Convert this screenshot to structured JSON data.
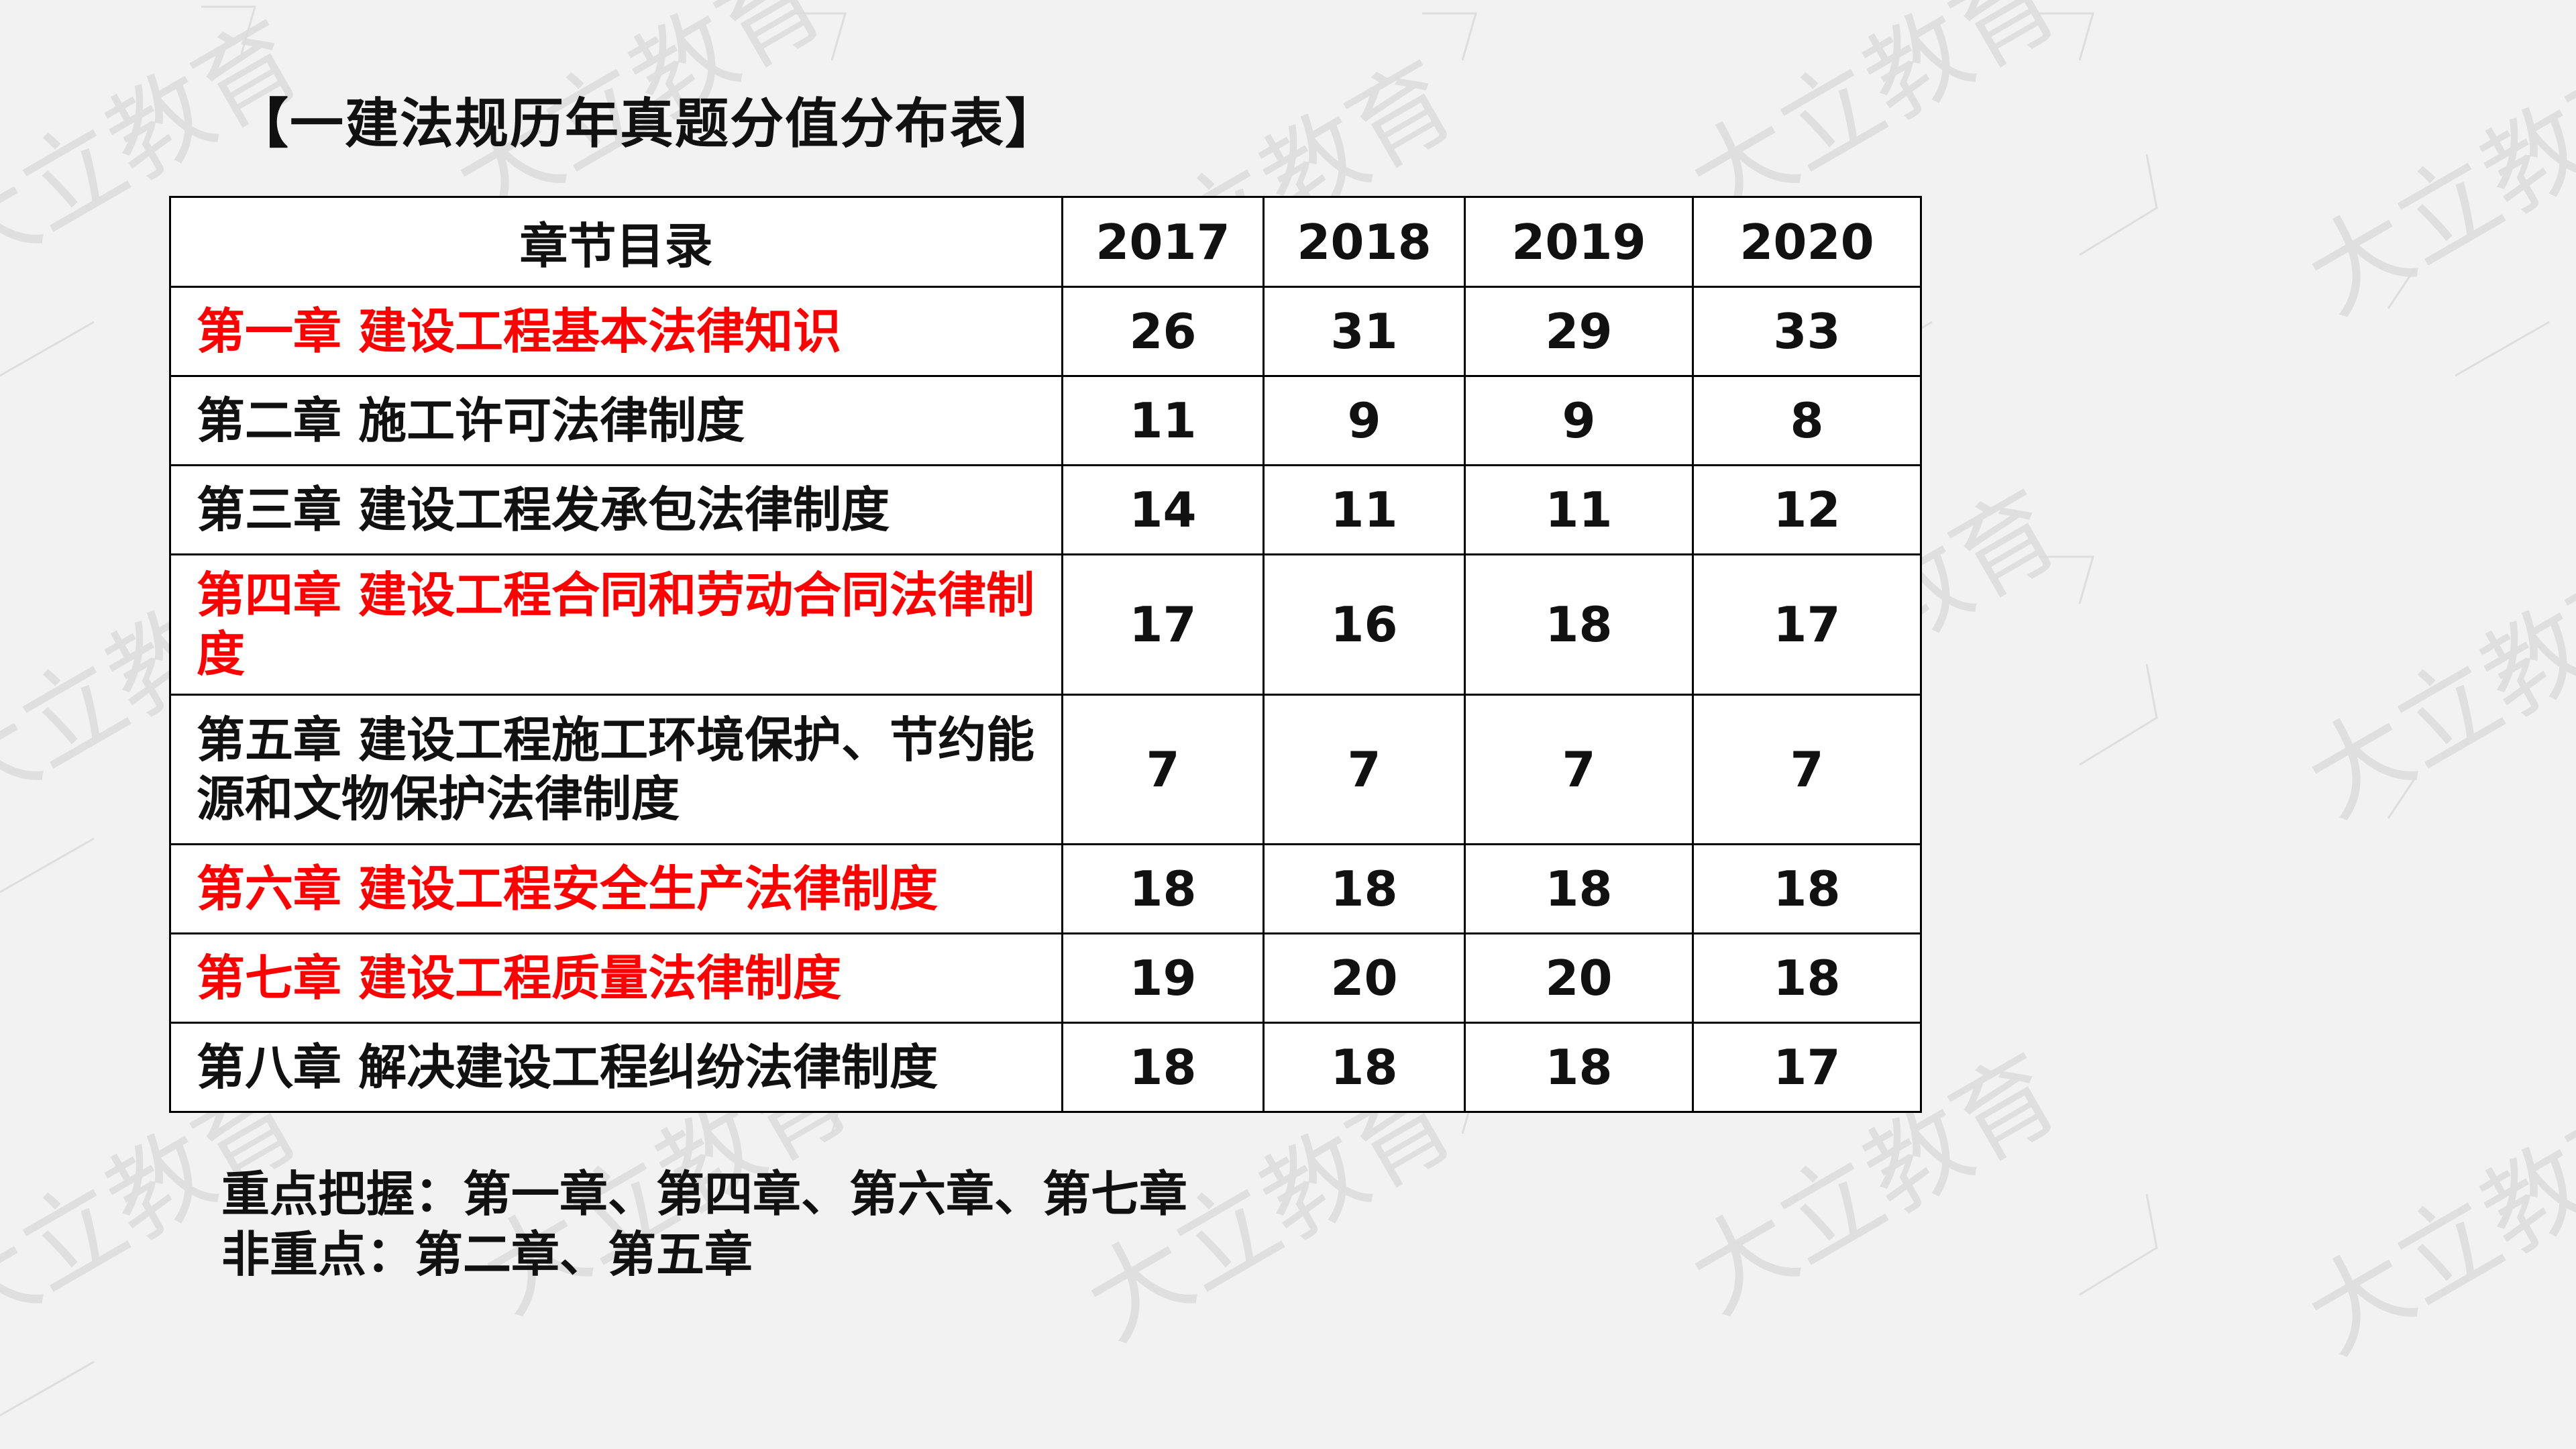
{
  "title": "【一建法规历年真题分值分布表】",
  "watermark_text": "大立教育",
  "table": {
    "header": [
      "章节目录",
      "2017",
      "2018",
      "2019",
      "2020"
    ],
    "rows": [
      {
        "chapter": "第一章  建设工程基本法律知识",
        "values": [
          "26",
          "31",
          "29",
          "33"
        ],
        "highlight": true
      },
      {
        "chapter": "第二章 施工许可法律制度",
        "values": [
          "11",
          "9",
          "9",
          "8"
        ],
        "highlight": false
      },
      {
        "chapter": "第三章 建设工程发承包法律制度",
        "values": [
          "14",
          "11",
          "11",
          "12"
        ],
        "highlight": false
      },
      {
        "chapter": "第四章 建设工程合同和劳动合同法律制度",
        "values": [
          "17",
          "16",
          "18",
          "17"
        ],
        "highlight": true
      },
      {
        "chapter": "第五章 建设工程施工环境保护、节约能源和文物保护法律制度",
        "values": [
          "7",
          "7",
          "7",
          "7"
        ],
        "highlight": false
      },
      {
        "chapter": "第六章 建设工程安全生产法律制度",
        "values": [
          "18",
          "18",
          "18",
          "18"
        ],
        "highlight": true
      },
      {
        "chapter": "第七章 建设工程质量法律制度",
        "values": [
          "19",
          "20",
          "20",
          "18"
        ],
        "highlight": true
      },
      {
        "chapter": "第八章 解决建设工程纠纷法律制度",
        "values": [
          "18",
          "18",
          "18",
          "17"
        ],
        "highlight": false
      }
    ]
  },
  "summary": {
    "key_points": "重点把握：第一章、第四章、第六章、第七章",
    "non_key_points": "非重点：第二章、第五章"
  },
  "colors": {
    "highlight": "#ff0000",
    "text": "#111111",
    "background": "#f2f2f2"
  }
}
